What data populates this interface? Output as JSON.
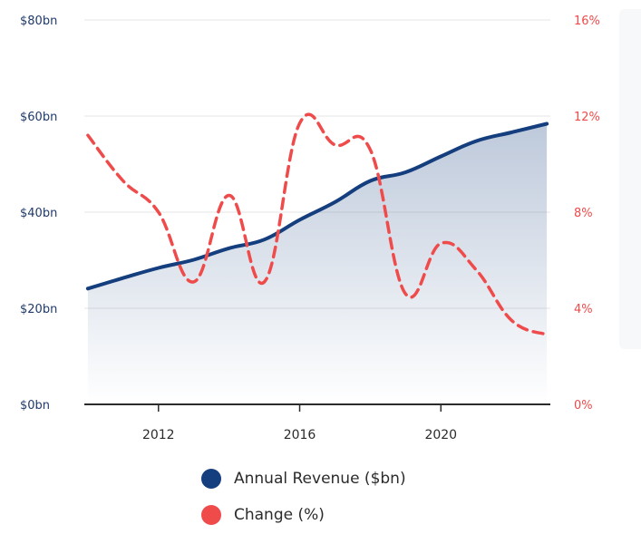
{
  "chart_data": {
    "type": "line",
    "x": [
      2010,
      2011,
      2012,
      2013,
      2014,
      2015,
      2016,
      2017,
      2018,
      2019,
      2020,
      2021,
      2022,
      2023
    ],
    "series": [
      {
        "name": "Annual Revenue ($bn)",
        "axis": "left",
        "values": [
          24.1,
          26.3,
          28.4,
          30.1,
          32.5,
          34.3,
          38.4,
          42.1,
          46.5,
          48.3,
          51.6,
          54.8,
          56.6,
          58.4
        ],
        "color": "#143e7d",
        "style": "solid",
        "fill": "gradient-area"
      },
      {
        "name": "Change (%)",
        "axis": "right",
        "values": [
          11.2,
          9.3,
          8.0,
          5.1,
          8.7,
          5.1,
          11.7,
          10.8,
          10.6,
          4.6,
          6.7,
          5.6,
          3.5,
          2.9
        ],
        "color": "#ef4b4b",
        "style": "dashed"
      }
    ],
    "xticks": [
      "2012",
      "2016",
      "2020"
    ],
    "xtick_values": [
      2012,
      2016,
      2020
    ],
    "xlim": [
      2009.9,
      2023.1
    ],
    "y_left": {
      "ticks": [
        "$0bn",
        "$20bn",
        "$40bn",
        "$60bn",
        "$80bn"
      ],
      "tick_values": [
        0,
        20,
        40,
        60,
        80
      ],
      "lim": [
        0,
        80
      ]
    },
    "y_right": {
      "ticks": [
        "0%",
        "4%",
        "8%",
        "12%",
        "16%"
      ],
      "tick_values": [
        0,
        4,
        8,
        12,
        16
      ],
      "lim": [
        0,
        16
      ]
    },
    "grid": "horizontal",
    "legend_position": "bottom-center"
  },
  "legend": {
    "revenue_label": "Annual Revenue ($bn)",
    "change_label": "Change (%)",
    "revenue_color": "#143e7d",
    "change_color": "#ef4b4b"
  }
}
